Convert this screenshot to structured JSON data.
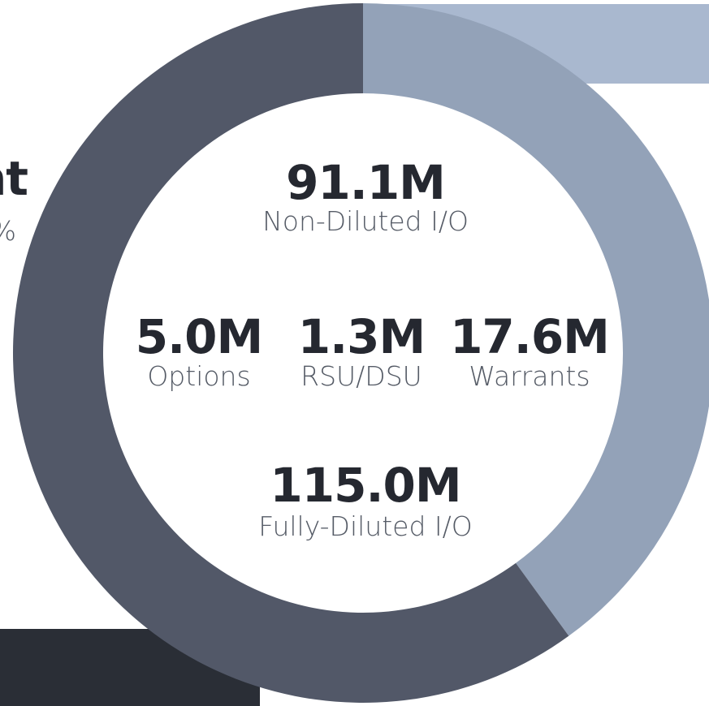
{
  "chart_data": {
    "type": "donut",
    "segments": [
      {
        "color": "#93a2b8",
        "value": 40
      },
      {
        "color": "#525868",
        "value": 60
      }
    ]
  },
  "fragments": {
    "title": "nt",
    "subtitle": "%"
  },
  "center": {
    "headline": {
      "value": "91.1M",
      "label": "Non-Diluted I/O"
    },
    "items": [
      {
        "value": "5.0M",
        "label": "Options"
      },
      {
        "value": "1.3M",
        "label": "RSU/DSU"
      },
      {
        "value": "17.6M",
        "label": "Warrants"
      }
    ],
    "total": {
      "value": "115.0M",
      "label": "Fully-Diluted I/O"
    }
  }
}
